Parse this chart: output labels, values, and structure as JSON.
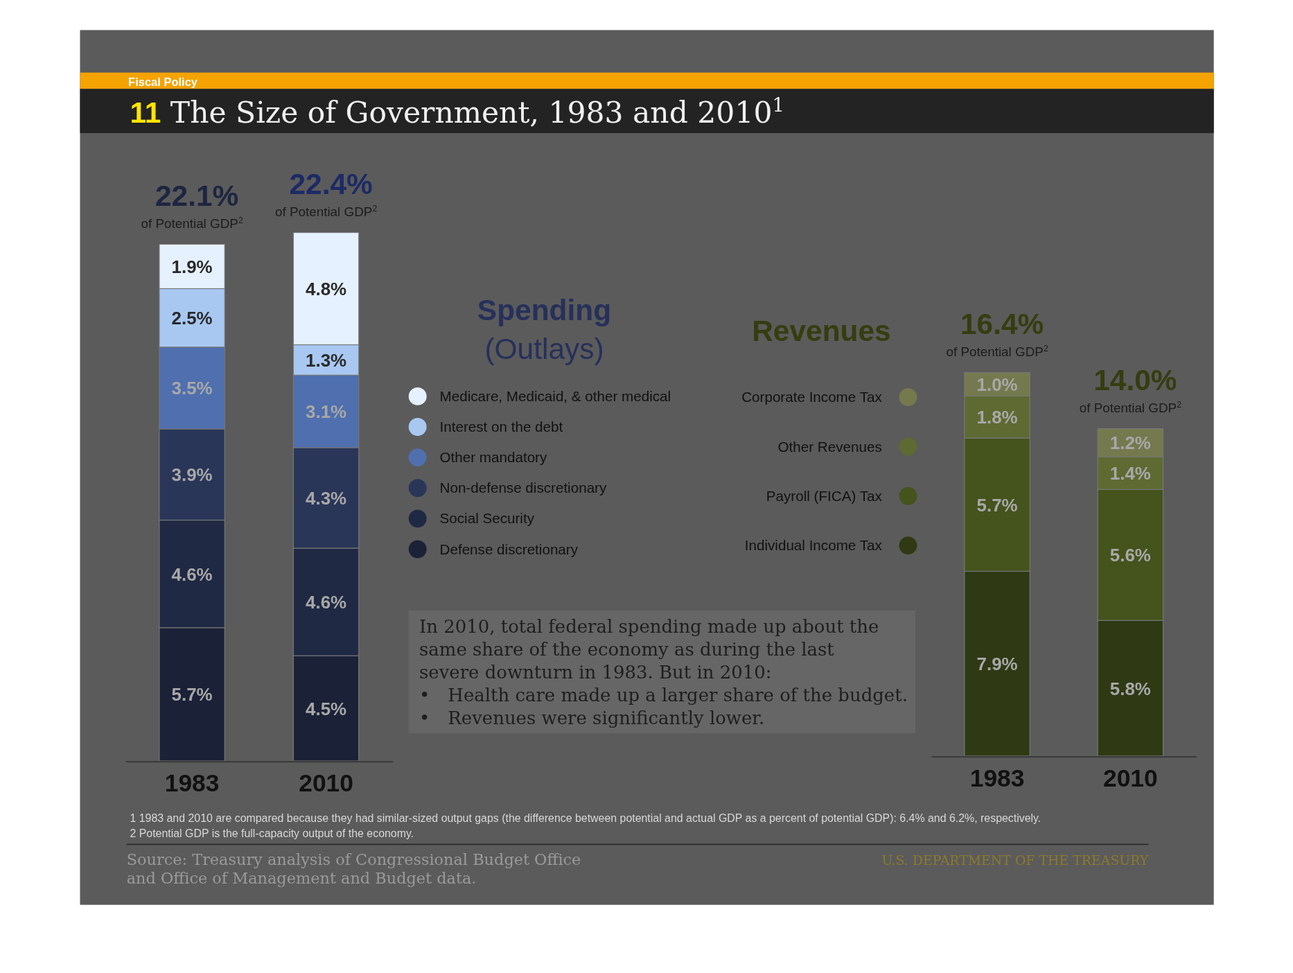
{
  "chart_data": [
    {
      "type": "other",
      "title": "11 The Size of Government, 1983 and 2010$^{1}$",
      "subtitle": "Fiscal Policy",
      "annotations": [
        "In 2010, total federal spending made up about the same share of the economy as during the last severe downturn in 1983. But in 2010:",
        "• Health care made up a larger share of the budget.",
        "• Revenues were significantly lower.",
        "1 1983 and 2010 are compared because they had similar-sized output gaps (the difference between potential and actual GDP as a percent of potential GDP): 6.4% and 6.2%, respectively.",
        "2 Potential GDP is the full-capacity output of the economy.",
        "Source: Treasury analysis of Congressional Budget Office and Office of Management and Budget data.",
        "U.S. DEPARTMENT OF THE TREASURY",
        "Spending (Outlays)"
      ]
    },
    {
      "type": "bar",
      "stacked": true,
      "categories": [
        "1983",
        "2010"
      ],
      "legend": "right",
      "totals": [
        "22.1%",
        "22.4%"
      ],
      "annotations": [
        "of Potential GDP$^{2}$",
        "of Potential GDP$^{2}$"
      ],
      "series": [
        {
          "name": "Defense discretionary",
          "color": "#1b2237",
          "values": [
            5.7,
            4.5
          ],
          "value_labels": [
            "5.7%",
            "4.5%"
          ]
        },
        {
          "name": "Social Security",
          "color": "#1f2944",
          "values": [
            4.6,
            4.6
          ],
          "value_labels": [
            "4.6%",
            "4.6%"
          ]
        },
        {
          "name": "Non-defense discretionary",
          "color": "#2a3658",
          "values": [
            3.9,
            4.3
          ],
          "value_labels": [
            "3.9%",
            "4.3%"
          ]
        },
        {
          "name": "Other mandatory",
          "color": "#4f6fae",
          "values": [
            3.5,
            3.1
          ],
          "value_labels": [
            "3.5%",
            "3.1%"
          ]
        },
        {
          "name": "Interest on the debt",
          "color": "#a8c8f2",
          "values": [
            2.5,
            1.3
          ],
          "value_labels": [
            "2.5%",
            "1.3%"
          ]
        },
        {
          "name": "Medicare, Medicaid, & other medical",
          "color": "#e6f1ff",
          "values": [
            1.9,
            4.8
          ],
          "value_labels": [
            "1.9%",
            "4.8%"
          ]
        }
      ]
    },
    {
      "type": "bar",
      "stacked": true,
      "title": "Revenues",
      "categories": [
        "1983",
        "2010"
      ],
      "legend": "left",
      "totals": [
        "16.4%",
        "14.0%"
      ],
      "annotations": [
        "of Potential GDP$^{2}$",
        "of Potential GDP$^{2}$"
      ],
      "series": [
        {
          "name": "Individual Income Tax",
          "color": "#2f3914",
          "values": [
            7.9,
            5.8
          ],
          "value_labels": [
            "7.9%",
            "5.8%"
          ]
        },
        {
          "name": "Payroll (FICA) Tax",
          "color": "#45531c",
          "values": [
            5.7,
            5.6
          ],
          "value_labels": [
            "5.7%",
            "5.6%"
          ]
        },
        {
          "name": "Other Revenues",
          "color": "#5e6a32",
          "values": [
            1.8,
            1.4
          ],
          "value_labels": [
            "1.8%",
            "1.4%"
          ]
        },
        {
          "name": "Corporate Income Tax",
          "color": "#75794e",
          "values": [
            1.0,
            1.2
          ],
          "value_labels": [
            "1.0%",
            "1.2%"
          ]
        }
      ]
    }
  ]
}
